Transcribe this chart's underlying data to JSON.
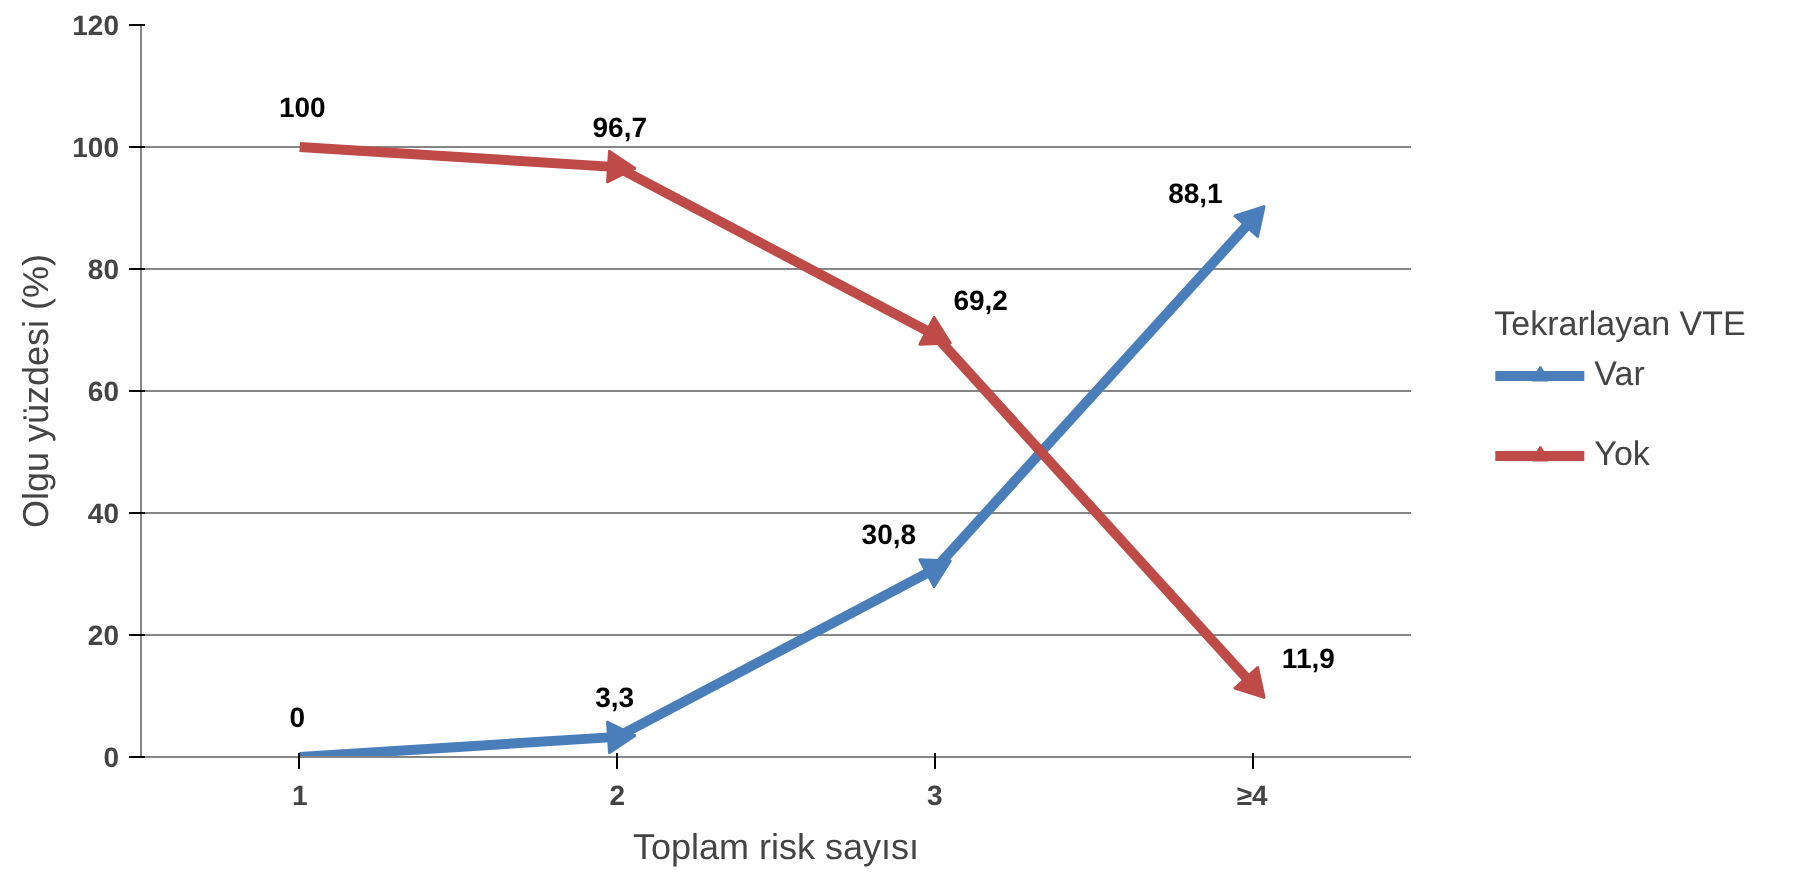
{
  "chart_data": {
    "type": "line",
    "xlabel": "Toplam risk sayısı",
    "ylabel": "Olgu yüzdesi (%)",
    "legend_title": "Tekrarlayan VTE",
    "categories": [
      "1",
      "2",
      "3",
      "≥4"
    ],
    "series": [
      {
        "name": "Var",
        "color": "#4a7ebb",
        "values": [
          0,
          3.3,
          30.8,
          88.1
        ],
        "value_labels": [
          "0",
          "3,3",
          "30,8",
          "88,1"
        ]
      },
      {
        "name": "Yok",
        "color": "#be4b48",
        "values": [
          100,
          96.7,
          69.2,
          11.9
        ],
        "value_labels": [
          "100",
          "96,7",
          "69,2",
          "11,9"
        ]
      }
    ],
    "ylim": [
      0,
      120
    ],
    "yticks": [
      0,
      20,
      40,
      60,
      80,
      100,
      120
    ],
    "grid": "y",
    "legend": "right",
    "marker": "triangle",
    "line_style": "solid"
  }
}
